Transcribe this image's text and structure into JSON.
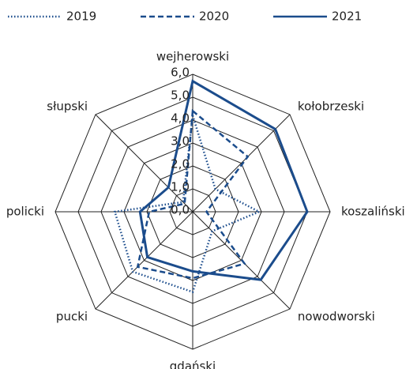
{
  "chart_data": {
    "type": "radar",
    "categories": [
      "wejherowski",
      "kołobrzeski",
      "koszaliński",
      "nowodworski",
      "gdański",
      "pucki",
      "policki",
      "słupski"
    ],
    "series": [
      {
        "name": "2019",
        "color": "#1b4c8c",
        "dash": "dotted",
        "values": [
          4.2,
          1.4,
          2.9,
          1.2,
          3.5,
          3.7,
          3.4,
          0.6
        ]
      },
      {
        "name": "2020",
        "color": "#1b4c8c",
        "dash": "dashed",
        "values": [
          4.4,
          3.4,
          0.6,
          3.2,
          2.9,
          3.4,
          1.9,
          0.5
        ]
      },
      {
        "name": "2021",
        "color": "#1b4c8c",
        "dash": "solid",
        "values": [
          5.7,
          5.1,
          5.0,
          4.2,
          2.6,
          2.8,
          2.3,
          1.5
        ]
      }
    ],
    "ylim": [
      0,
      6
    ],
    "yticks": [
      {
        "value": 0,
        "label": "0,0"
      },
      {
        "value": 1,
        "label": "1,0"
      },
      {
        "value": 2,
        "label": "2,0"
      },
      {
        "value": 3,
        "label": "3,0"
      },
      {
        "value": 4,
        "label": "4,0"
      },
      {
        "value": 5,
        "label": "5,0"
      },
      {
        "value": 6,
        "label": "6,0"
      }
    ],
    "legend": "top"
  }
}
